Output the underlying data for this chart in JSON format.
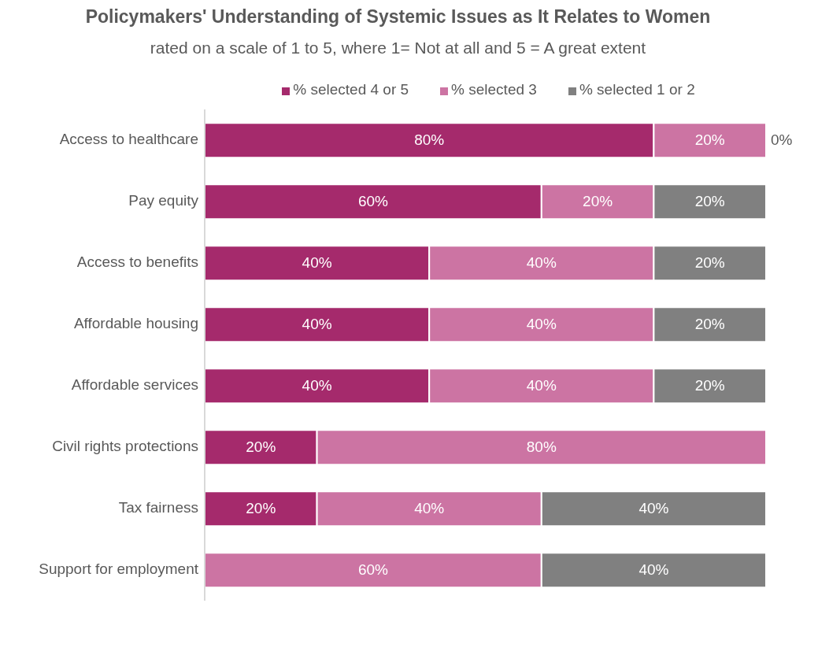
{
  "chart_data": {
    "type": "bar",
    "orientation": "horizontal",
    "stacked": true,
    "title": "Policymakers' Understanding of Systemic Issues as It Relates to Women",
    "subtitle": "rated on a scale of 1 to 5, where 1= Not at all and 5 = A great extent",
    "categories": [
      "Access to healthcare",
      "Pay equity",
      "Access to benefits",
      "Affordable housing",
      "Affordable services",
      "Civil rights protections",
      "Tax fairness",
      "Support for employment"
    ],
    "series": [
      {
        "name": "% selected 4 or 5",
        "color": "#a52a6c",
        "values": [
          80,
          60,
          40,
          40,
          40,
          20,
          20,
          0
        ],
        "value_labels": [
          "80%",
          "60%",
          "40%",
          "40%",
          "40%",
          "20%",
          "20%",
          null
        ]
      },
      {
        "name": "% selected 3",
        "color": "#cc74a3",
        "values": [
          20,
          20,
          40,
          40,
          40,
          80,
          40,
          60
        ],
        "value_labels": [
          "20%",
          "20%",
          "40%",
          "40%",
          "40%",
          "80%",
          "40%",
          "60%"
        ]
      },
      {
        "name": "% selected 1 or 2",
        "color": "#808080",
        "values": [
          0,
          20,
          20,
          20,
          20,
          0,
          40,
          40
        ],
        "value_labels": [
          "0%",
          "20%",
          "20%",
          "20%",
          "20%",
          null,
          "40%",
          "40%"
        ]
      }
    ],
    "legend": "top",
    "grid": false
  }
}
